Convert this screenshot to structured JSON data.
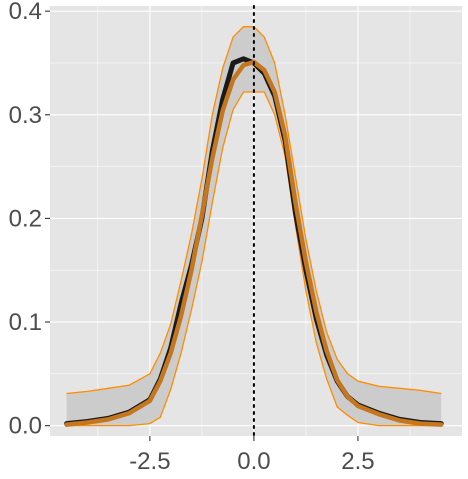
{
  "chart_data": {
    "type": "line",
    "title": "",
    "xlabel": "",
    "ylabel": "",
    "xlim": [
      -4.9,
      5.0
    ],
    "ylim": [
      -0.01,
      0.405
    ],
    "x_ticks": [
      -2.5,
      0.0,
      2.5
    ],
    "x_tick_labels": [
      "-2.5",
      "0.0",
      "2.5"
    ],
    "y_ticks": [
      0.0,
      0.1,
      0.2,
      0.3,
      0.4
    ],
    "y_tick_labels": [
      "0.0",
      "0.1",
      "0.2",
      "0.3",
      "0.4"
    ],
    "grid": true,
    "legend": "none",
    "reference_line": {
      "x": 0.0,
      "style": "dotted"
    },
    "x": [
      -4.5,
      -4.0,
      -3.5,
      -3.0,
      -2.5,
      -2.25,
      -2.0,
      -1.75,
      -1.5,
      -1.25,
      -1.0,
      -0.75,
      -0.5,
      -0.25,
      0.0,
      0.25,
      0.5,
      0.75,
      1.0,
      1.25,
      1.5,
      1.75,
      2.0,
      2.25,
      2.5,
      3.0,
      3.5,
      4.0,
      4.5
    ],
    "series": [
      {
        "role": "observed",
        "color": "#1a1a1a",
        "values": [
          0.002,
          0.004,
          0.007,
          0.013,
          0.025,
          0.045,
          0.075,
          0.118,
          0.155,
          0.2,
          0.265,
          0.315,
          0.35,
          0.354,
          0.35,
          0.34,
          0.318,
          0.275,
          0.205,
          0.15,
          0.103,
          0.068,
          0.043,
          0.028,
          0.02,
          0.012,
          0.006,
          0.003,
          0.002
        ]
      },
      {
        "role": "fitted",
        "color": "#c5771f",
        "values": [
          0.001,
          0.003,
          0.006,
          0.012,
          0.024,
          0.043,
          0.07,
          0.106,
          0.15,
          0.203,
          0.258,
          0.304,
          0.334,
          0.348,
          0.351,
          0.343,
          0.322,
          0.28,
          0.215,
          0.158,
          0.11,
          0.072,
          0.044,
          0.028,
          0.019,
          0.011,
          0.005,
          0.002,
          0.001
        ]
      }
    ],
    "band": {
      "fill": "#cccccc",
      "edge_color": "#ff8c00",
      "upper": [
        0.031,
        0.033,
        0.036,
        0.039,
        0.05,
        0.07,
        0.098,
        0.14,
        0.185,
        0.238,
        0.3,
        0.345,
        0.375,
        0.385,
        0.385,
        0.375,
        0.35,
        0.3,
        0.24,
        0.18,
        0.13,
        0.09,
        0.064,
        0.05,
        0.043,
        0.038,
        0.036,
        0.034,
        0.031
      ],
      "lower": [
        0.0,
        0.0,
        0.0,
        0.0,
        0.002,
        0.008,
        0.035,
        0.07,
        0.112,
        0.158,
        0.215,
        0.268,
        0.305,
        0.322,
        0.322,
        0.322,
        0.3,
        0.26,
        0.193,
        0.13,
        0.08,
        0.045,
        0.018,
        0.01,
        0.003,
        0.0,
        0.0,
        0.0,
        0.0
      ]
    },
    "colors": {
      "panel_background": "#e5e5e5",
      "grid_major": "#ffffff",
      "tick_color": "#333333"
    }
  }
}
